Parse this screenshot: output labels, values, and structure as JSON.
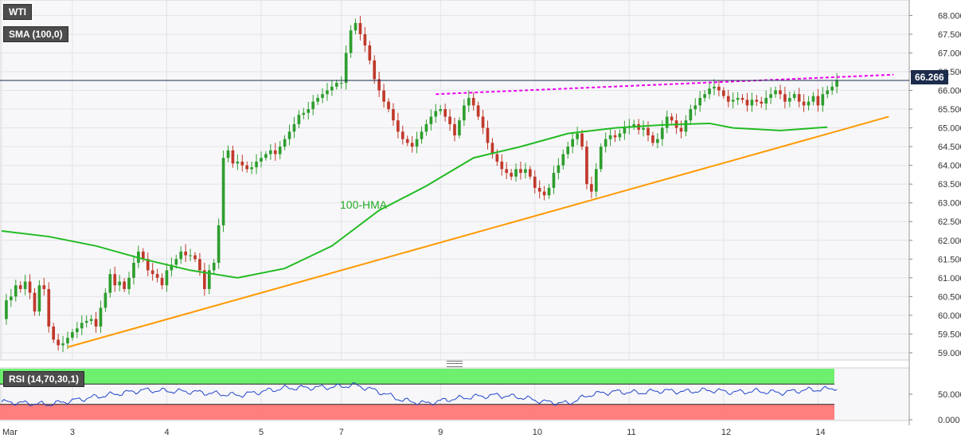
{
  "instrument": "WTI",
  "indicator_label": "SMA (100,0)",
  "rsi_label": "RSI (14,70,30,1)",
  "current_price_label": "66.266",
  "annotation_hma": "100-HMA",
  "colors": {
    "up_candle": "#2e9e2e",
    "down_candle": "#c0392b",
    "hma": "#22bb22",
    "support": "#ff9900",
    "resistance": "#ee00ee",
    "price_line": "#1c2c4c",
    "rsi_line": "#2244cc",
    "rsi_overbought_zone": "#66ee66",
    "rsi_oversold_zone": "#ff7777"
  },
  "chart_data": [
    {
      "type": "candlestick",
      "title": "WTI",
      "y_ticks": [
        "59.000",
        "59.500",
        "60.000",
        "60.500",
        "61.000",
        "61.500",
        "62.000",
        "62.500",
        "63.000",
        "63.500",
        "64.000",
        "64.500",
        "65.000",
        "65.500",
        "66.000",
        "66.500",
        "67.000",
        "67.500",
        "68.000"
      ],
      "ylim": [
        58.85,
        68.2
      ],
      "x_tick_labels": [
        "Mar",
        "3",
        "4",
        "5",
        "7",
        "9",
        "10",
        "11",
        "12",
        "14"
      ],
      "x_tick_hours": [
        0,
        15,
        35,
        55,
        72,
        93,
        113,
        133,
        153,
        173
      ],
      "x_range_hours": [
        0,
        192
      ],
      "grid": true,
      "current_price": 66.266,
      "anchors_hours_price": [
        [
          0,
          59.9
        ],
        [
          1,
          60.4
        ],
        [
          2,
          60.5
        ],
        [
          3,
          60.8
        ],
        [
          4,
          60.7
        ],
        [
          5,
          60.9
        ],
        [
          6,
          60.6
        ],
        [
          7,
          60.1
        ],
        [
          8,
          60.8
        ],
        [
          9,
          60.7
        ],
        [
          10,
          59.7
        ],
        [
          11,
          59.35
        ],
        [
          12,
          59.2
        ],
        [
          13,
          59.25
        ],
        [
          14,
          59.4
        ],
        [
          15,
          59.55
        ],
        [
          16,
          59.65
        ],
        [
          17,
          59.8
        ],
        [
          18,
          59.85
        ],
        [
          19,
          59.9
        ],
        [
          20,
          59.7
        ],
        [
          21,
          60.2
        ],
        [
          22,
          60.6
        ],
        [
          23,
          61.1
        ],
        [
          24,
          60.8
        ],
        [
          25,
          60.9
        ],
        [
          26,
          60.7
        ],
        [
          27,
          61.0
        ],
        [
          28,
          61.4
        ],
        [
          29,
          61.7
        ],
        [
          30,
          61.5
        ],
        [
          31,
          61.2
        ],
        [
          32,
          61.1
        ],
        [
          33,
          61.0
        ],
        [
          34,
          60.8
        ],
        [
          35,
          61.2
        ],
        [
          36,
          61.35
        ],
        [
          37,
          61.5
        ],
        [
          38,
          61.7
        ],
        [
          39,
          61.6
        ],
        [
          40,
          61.6
        ],
        [
          41,
          61.5
        ],
        [
          42,
          61.2
        ],
        [
          43,
          60.7
        ],
        [
          44,
          61.2
        ],
        [
          45,
          61.4
        ],
        [
          46,
          62.4
        ],
        [
          47,
          64.2
        ],
        [
          48,
          64.4
        ],
        [
          49,
          64.05
        ],
        [
          50,
          64.1
        ],
        [
          51,
          64.0
        ],
        [
          52,
          63.9
        ],
        [
          53,
          63.95
        ],
        [
          54,
          64.1
        ],
        [
          55,
          64.2
        ],
        [
          56,
          64.3
        ],
        [
          57,
          64.4
        ],
        [
          58,
          64.3
        ],
        [
          59,
          64.5
        ],
        [
          60,
          64.7
        ],
        [
          61,
          64.9
        ],
        [
          62,
          65.1
        ],
        [
          63,
          65.35
        ],
        [
          64,
          65.4
        ],
        [
          65,
          65.5
        ],
        [
          66,
          65.7
        ],
        [
          67,
          65.8
        ],
        [
          68,
          65.9
        ],
        [
          69,
          66.0
        ],
        [
          70,
          66.1
        ],
        [
          71,
          66.2
        ],
        [
          72,
          66.2
        ],
        [
          73,
          67.0
        ],
        [
          74,
          67.6
        ],
        [
          75,
          67.8
        ],
        [
          76,
          67.5
        ],
        [
          77,
          67.2
        ],
        [
          78,
          66.8
        ],
        [
          79,
          66.3
        ],
        [
          80,
          66.0
        ],
        [
          81,
          65.7
        ],
        [
          82,
          65.5
        ],
        [
          83,
          65.2
        ],
        [
          84,
          64.9
        ],
        [
          85,
          64.7
        ],
        [
          86,
          64.6
        ],
        [
          87,
          64.5
        ],
        [
          88,
          64.7
        ],
        [
          89,
          64.9
        ],
        [
          90,
          65.1
        ],
        [
          91,
          65.3
        ],
        [
          92,
          65.45
        ],
        [
          93,
          65.5
        ],
        [
          94,
          65.3
        ],
        [
          95,
          65.1
        ],
        [
          96,
          64.8
        ],
        [
          97,
          65.2
        ],
        [
          98,
          65.6
        ],
        [
          99,
          65.8
        ],
        [
          100,
          65.6
        ],
        [
          101,
          65.3
        ],
        [
          102,
          65.0
        ],
        [
          103,
          64.6
        ],
        [
          104,
          64.3
        ],
        [
          105,
          64.1
        ],
        [
          106,
          63.9
        ],
        [
          107,
          63.8
        ],
        [
          108,
          63.7
        ],
        [
          109,
          63.9
        ],
        [
          110,
          63.8
        ],
        [
          111,
          63.9
        ],
        [
          112,
          63.7
        ],
        [
          113,
          63.4
        ],
        [
          114,
          63.3
        ],
        [
          115,
          63.2
        ],
        [
          116,
          63.4
        ],
        [
          117,
          63.8
        ],
        [
          118,
          64.0
        ],
        [
          119,
          64.3
        ],
        [
          120,
          64.5
        ],
        [
          121,
          64.7
        ],
        [
          122,
          64.85
        ],
        [
          123,
          64.5
        ],
        [
          124,
          63.5
        ],
        [
          125,
          63.3
        ],
        [
          126,
          63.9
        ],
        [
          127,
          64.5
        ],
        [
          128,
          64.7
        ],
        [
          129,
          64.8
        ],
        [
          130,
          64.75
        ],
        [
          131,
          64.85
        ],
        [
          132,
          65.0
        ],
        [
          133,
          65.05
        ],
        [
          134,
          65.1
        ],
        [
          135,
          64.95
        ],
        [
          136,
          65.0
        ],
        [
          137,
          64.8
        ],
        [
          138,
          64.6
        ],
        [
          139,
          64.7
        ],
        [
          140,
          65.0
        ],
        [
          141,
          65.3
        ],
        [
          142,
          65.2
        ],
        [
          143,
          65.0
        ],
        [
          144,
          64.9
        ],
        [
          145,
          65.2
        ],
        [
          146,
          65.5
        ],
        [
          147,
          65.6
        ],
        [
          148,
          65.8
        ],
        [
          149,
          65.9
        ],
        [
          150,
          66.05
        ],
        [
          151,
          66.1
        ],
        [
          152,
          66.0
        ],
        [
          153,
          65.85
        ],
        [
          154,
          65.7
        ],
        [
          155,
          65.75
        ],
        [
          156,
          65.8
        ],
        [
          157,
          65.75
        ],
        [
          158,
          65.6
        ],
        [
          159,
          65.75
        ],
        [
          160,
          65.7
        ],
        [
          161,
          65.65
        ],
        [
          162,
          65.8
        ],
        [
          163,
          65.9
        ],
        [
          164,
          66.0
        ],
        [
          165,
          65.9
        ],
        [
          166,
          65.7
        ],
        [
          167,
          65.8
        ],
        [
          168,
          65.9
        ],
        [
          169,
          65.7
        ],
        [
          170,
          65.6
        ],
        [
          171,
          65.7
        ],
        [
          172,
          65.85
        ],
        [
          173,
          65.6
        ],
        [
          174,
          65.9
        ],
        [
          175,
          66.0
        ],
        [
          176,
          66.1
        ],
        [
          177,
          66.266
        ]
      ],
      "series": [
        {
          "kind": "line",
          "points_hours_price": [
            [
              0,
              62.25
            ],
            [
              10,
              62.1
            ],
            [
              20,
              61.85
            ],
            [
              30,
              61.5
            ],
            [
              40,
              61.2
            ],
            [
              50,
              61.0
            ],
            [
              60,
              61.25
            ],
            [
              70,
              61.85
            ],
            [
              80,
              62.8
            ],
            [
              90,
              63.45
            ],
            [
              100,
              64.2
            ],
            [
              110,
              64.5
            ],
            [
              120,
              64.85
            ],
            [
              130,
              65.0
            ],
            [
              140,
              65.08
            ],
            [
              150,
              65.12
            ],
            [
              155,
              65.0
            ],
            [
              165,
              64.93
            ],
            [
              175,
              65.02
            ]
          ]
        },
        {
          "kind": "trendline_support",
          "points_hours_price": [
            [
              14,
              59.15
            ],
            [
              188,
              65.3
            ]
          ]
        },
        {
          "kind": "trendline_resistance",
          "points_hours_price": [
            [
              92,
              65.9
            ],
            [
              189,
              66.42
            ]
          ]
        }
      ]
    },
    {
      "type": "line",
      "title": "RSI (14,70,30,1)",
      "y_ticks": [
        "0.000",
        "50.000"
      ],
      "ylim": [
        0,
        100
      ],
      "overbought": 70,
      "oversold": 30,
      "anchors_hours_value": [
        [
          0,
          35
        ],
        [
          10,
          30
        ],
        [
          20,
          45
        ],
        [
          30,
          58
        ],
        [
          40,
          55
        ],
        [
          50,
          48
        ],
        [
          60,
          62
        ],
        [
          70,
          64
        ],
        [
          75,
          68
        ],
        [
          80,
          55
        ],
        [
          85,
          38
        ],
        [
          90,
          32
        ],
        [
          95,
          40
        ],
        [
          100,
          45
        ],
        [
          105,
          48
        ],
        [
          110,
          44
        ],
        [
          115,
          35
        ],
        [
          120,
          32
        ],
        [
          125,
          50
        ],
        [
          130,
          55
        ],
        [
          135,
          53
        ],
        [
          140,
          57
        ],
        [
          145,
          55
        ],
        [
          150,
          58
        ],
        [
          155,
          54
        ],
        [
          160,
          56
        ],
        [
          165,
          53
        ],
        [
          170,
          58
        ],
        [
          175,
          60
        ],
        [
          177,
          63
        ]
      ]
    }
  ]
}
